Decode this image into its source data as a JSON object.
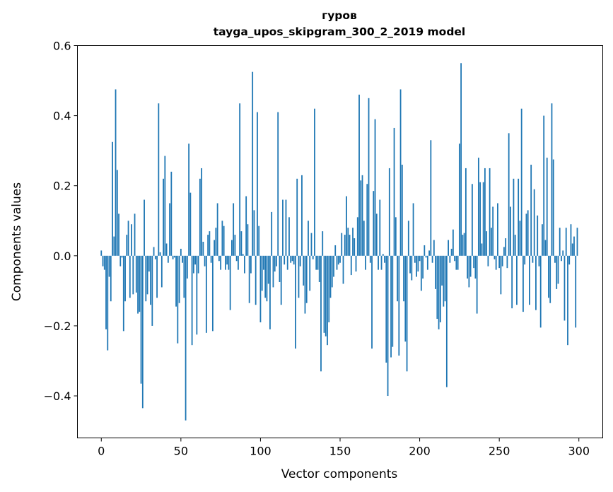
{
  "chart_data": {
    "type": "bar",
    "title": "гуров",
    "subtitle": "tayga_upos_skipgram_300_2_2019 model",
    "xlabel": "Vector components",
    "ylabel": "Components values",
    "xlim": [
      -15,
      315
    ],
    "ylim": [
      -0.52,
      0.6
    ],
    "xticks": [
      0,
      50,
      100,
      150,
      200,
      250,
      300
    ],
    "xtick_labels": [
      "0",
      "50",
      "100",
      "150",
      "200",
      "250",
      "300"
    ],
    "yticks": [
      -0.4,
      -0.2,
      0.0,
      0.2,
      0.4,
      0.6
    ],
    "ytick_labels": [
      "−0.4",
      "−0.2",
      "0.0",
      "0.2",
      "0.4",
      "0.6"
    ],
    "grid": false,
    "bar_color": "#1f77b4",
    "values": [
      0.015,
      -0.03,
      -0.04,
      -0.21,
      -0.27,
      -0.06,
      -0.13,
      0.325,
      0.055,
      0.475,
      0.245,
      0.12,
      -0.03,
      -0.005,
      -0.215,
      -0.13,
      0.06,
      0.1,
      -0.12,
      0.09,
      -0.11,
      0.12,
      -0.105,
      -0.165,
      -0.16,
      -0.365,
      -0.435,
      0.16,
      -0.13,
      -0.11,
      -0.045,
      -0.14,
      -0.2,
      0.025,
      -0.01,
      -0.12,
      0.435,
      0.01,
      -0.09,
      0.22,
      0.285,
      0.035,
      -0.02,
      0.15,
      0.24,
      -0.01,
      -0.005,
      -0.145,
      -0.25,
      -0.135,
      0.02,
      -0.02,
      -0.12,
      -0.47,
      -0.065,
      0.32,
      0.18,
      -0.255,
      -0.05,
      -0.025,
      -0.225,
      -0.05,
      0.22,
      0.25,
      0.04,
      -0.03,
      -0.22,
      0.06,
      0.07,
      -0.02,
      -0.215,
      0.045,
      0.08,
      0.15,
      -0.015,
      -0.04,
      0.1,
      0.085,
      -0.04,
      -0.025,
      -0.04,
      -0.155,
      0.045,
      0.15,
      0.06,
      -0.015,
      -0.04,
      0.435,
      0.07,
      0.005,
      -0.05,
      0.17,
      0.09,
      -0.135,
      -0.05,
      0.525,
      0.13,
      -0.14,
      0.41,
      0.085,
      -0.19,
      -0.1,
      -0.04,
      -0.12,
      -0.13,
      -0.08,
      -0.21,
      0.125,
      -0.09,
      -0.045,
      -0.03,
      0.41,
      -0.075,
      -0.14,
      0.16,
      -0.025,
      0.16,
      -0.04,
      0.11,
      -0.02,
      -0.015,
      -0.025,
      -0.265,
      0.22,
      -0.12,
      -0.03,
      0.23,
      -0.085,
      -0.165,
      -0.135,
      0.1,
      -0.1,
      0.065,
      -0.01,
      0.42,
      -0.04,
      -0.04,
      -0.075,
      -0.33,
      0.07,
      -0.22,
      -0.23,
      -0.255,
      -0.19,
      -0.12,
      -0.09,
      -0.06,
      0.03,
      -0.04,
      -0.025,
      -0.02,
      0.065,
      -0.08,
      0.06,
      0.17,
      0.08,
      0.06,
      -0.055,
      0.08,
      0.05,
      -0.045,
      0.11,
      0.46,
      0.215,
      0.23,
      0.1,
      -0.04,
      0.205,
      0.45,
      -0.02,
      -0.265,
      0.185,
      0.39,
      0.12,
      -0.04,
      0.16,
      -0.04,
      0.005,
      -0.02,
      -0.305,
      -0.4,
      0.25,
      -0.29,
      -0.26,
      0.365,
      0.11,
      -0.13,
      -0.285,
      0.475,
      0.26,
      -0.13,
      -0.245,
      -0.33,
      0.1,
      -0.05,
      -0.07,
      0.15,
      -0.02,
      -0.06,
      -0.045,
      -0.015,
      -0.1,
      -0.065,
      0.03,
      -0.005,
      -0.04,
      0.015,
      0.33,
      -0.02,
      0.045,
      -0.095,
      -0.18,
      -0.21,
      -0.19,
      -0.085,
      -0.145,
      -0.13,
      -0.375,
      0.045,
      -0.02,
      0.02,
      0.075,
      -0.015,
      -0.04,
      -0.04,
      0.32,
      0.55,
      0.06,
      0.065,
      0.25,
      -0.065,
      -0.09,
      -0.06,
      0.205,
      -0.035,
      -0.065,
      -0.165,
      0.28,
      0.21,
      0.035,
      0.21,
      0.25,
      0.07,
      -0.03,
      0.25,
      0.08,
      0.14,
      -0.01,
      -0.04,
      0.15,
      -0.035,
      -0.11,
      -0.03,
      0.025,
      0.05,
      -0.035,
      0.35,
      0.14,
      -0.15,
      0.22,
      0.06,
      -0.14,
      0.22,
      0.1,
      0.42,
      -0.16,
      -0.025,
      0.12,
      0.13,
      -0.14,
      0.26,
      -0.02,
      0.19,
      -0.155,
      0.115,
      -0.03,
      -0.205,
      0.09,
      0.4,
      0.045,
      0.28,
      -0.12,
      -0.135,
      0.435,
      0.275,
      -0.02,
      -0.095,
      -0.08,
      0.08,
      -0.015,
      0.015,
      -0.185,
      0.08,
      -0.255,
      -0.025,
      0.09,
      0.035,
      0.055,
      -0.205,
      0.08
    ]
  }
}
